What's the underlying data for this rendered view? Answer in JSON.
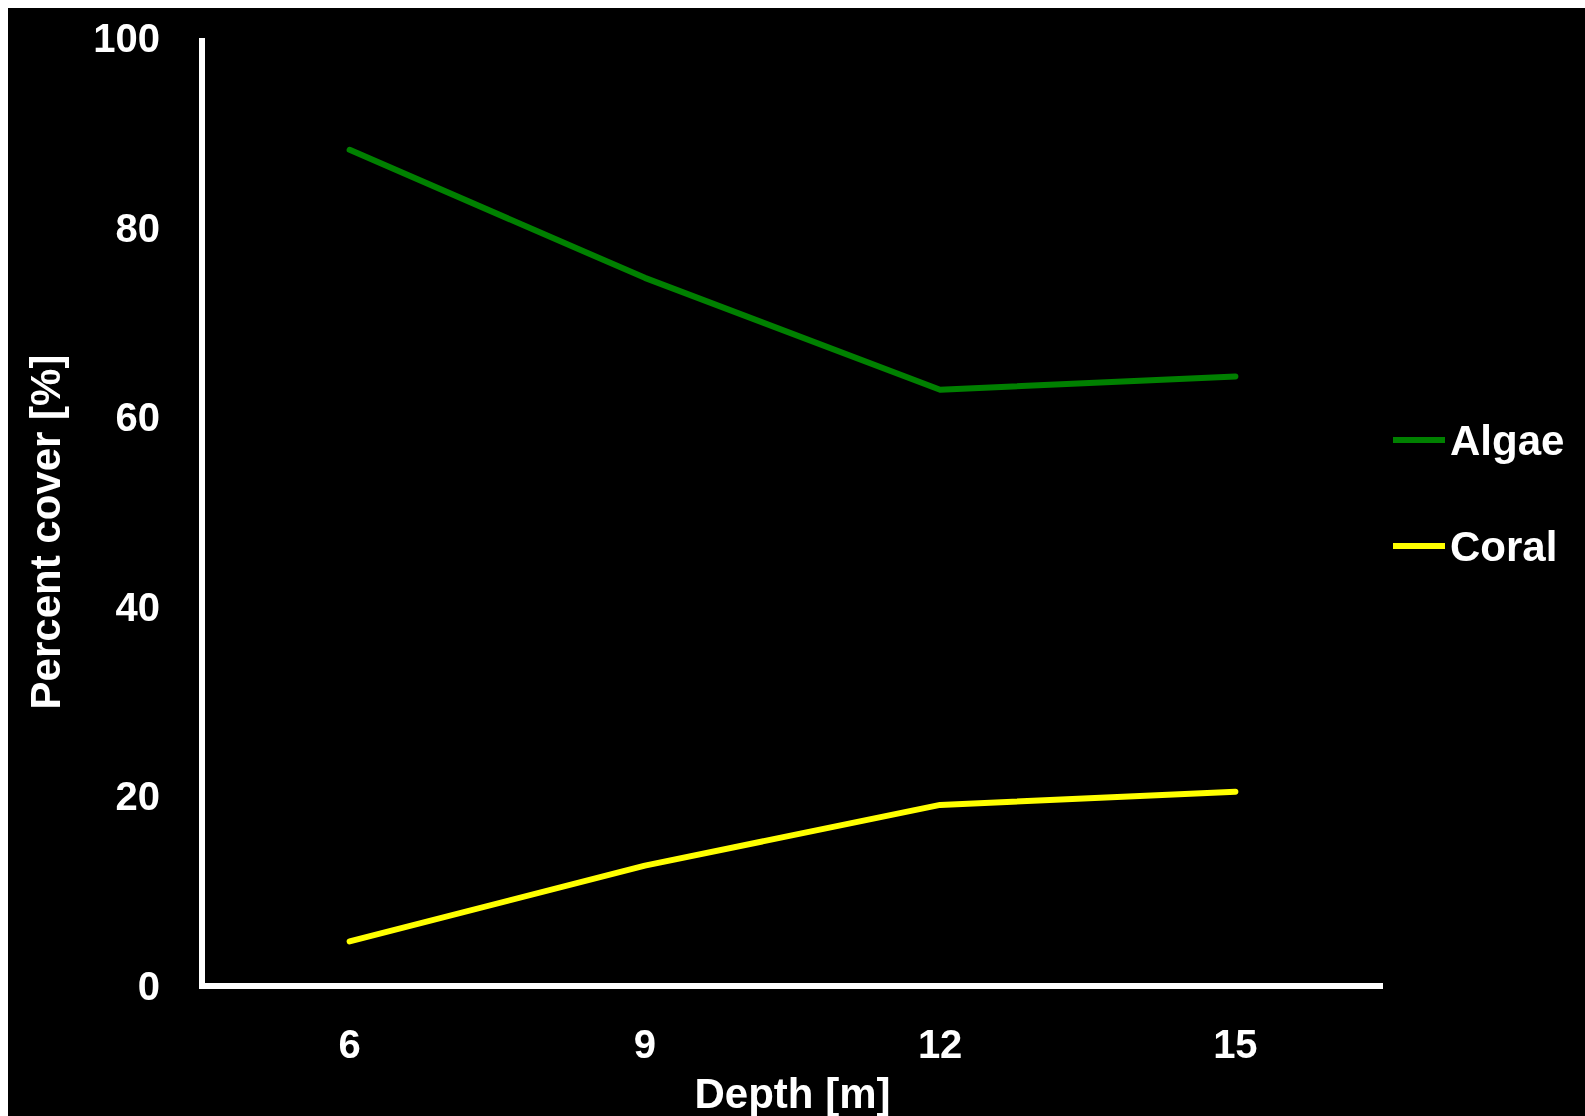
{
  "chart_data": {
    "type": "line",
    "xlabel": "Depth [m]",
    "ylabel": "Percent cover [%]",
    "categories": [
      "6",
      "9",
      "12",
      "15"
    ],
    "series": [
      {
        "name": "Algae",
        "color": "#008000",
        "values": [
          88.2,
          74.7,
          62.9,
          64.3
        ]
      },
      {
        "name": "Coral",
        "color": "#ffff00",
        "values": [
          4.7,
          12.7,
          19.1,
          20.5
        ]
      }
    ],
    "ylim": [
      0,
      100
    ],
    "yticks": [
      0,
      20,
      40,
      60,
      80,
      100
    ],
    "grid": false,
    "legend": "right",
    "marker": "none",
    "line_style": "solid"
  }
}
